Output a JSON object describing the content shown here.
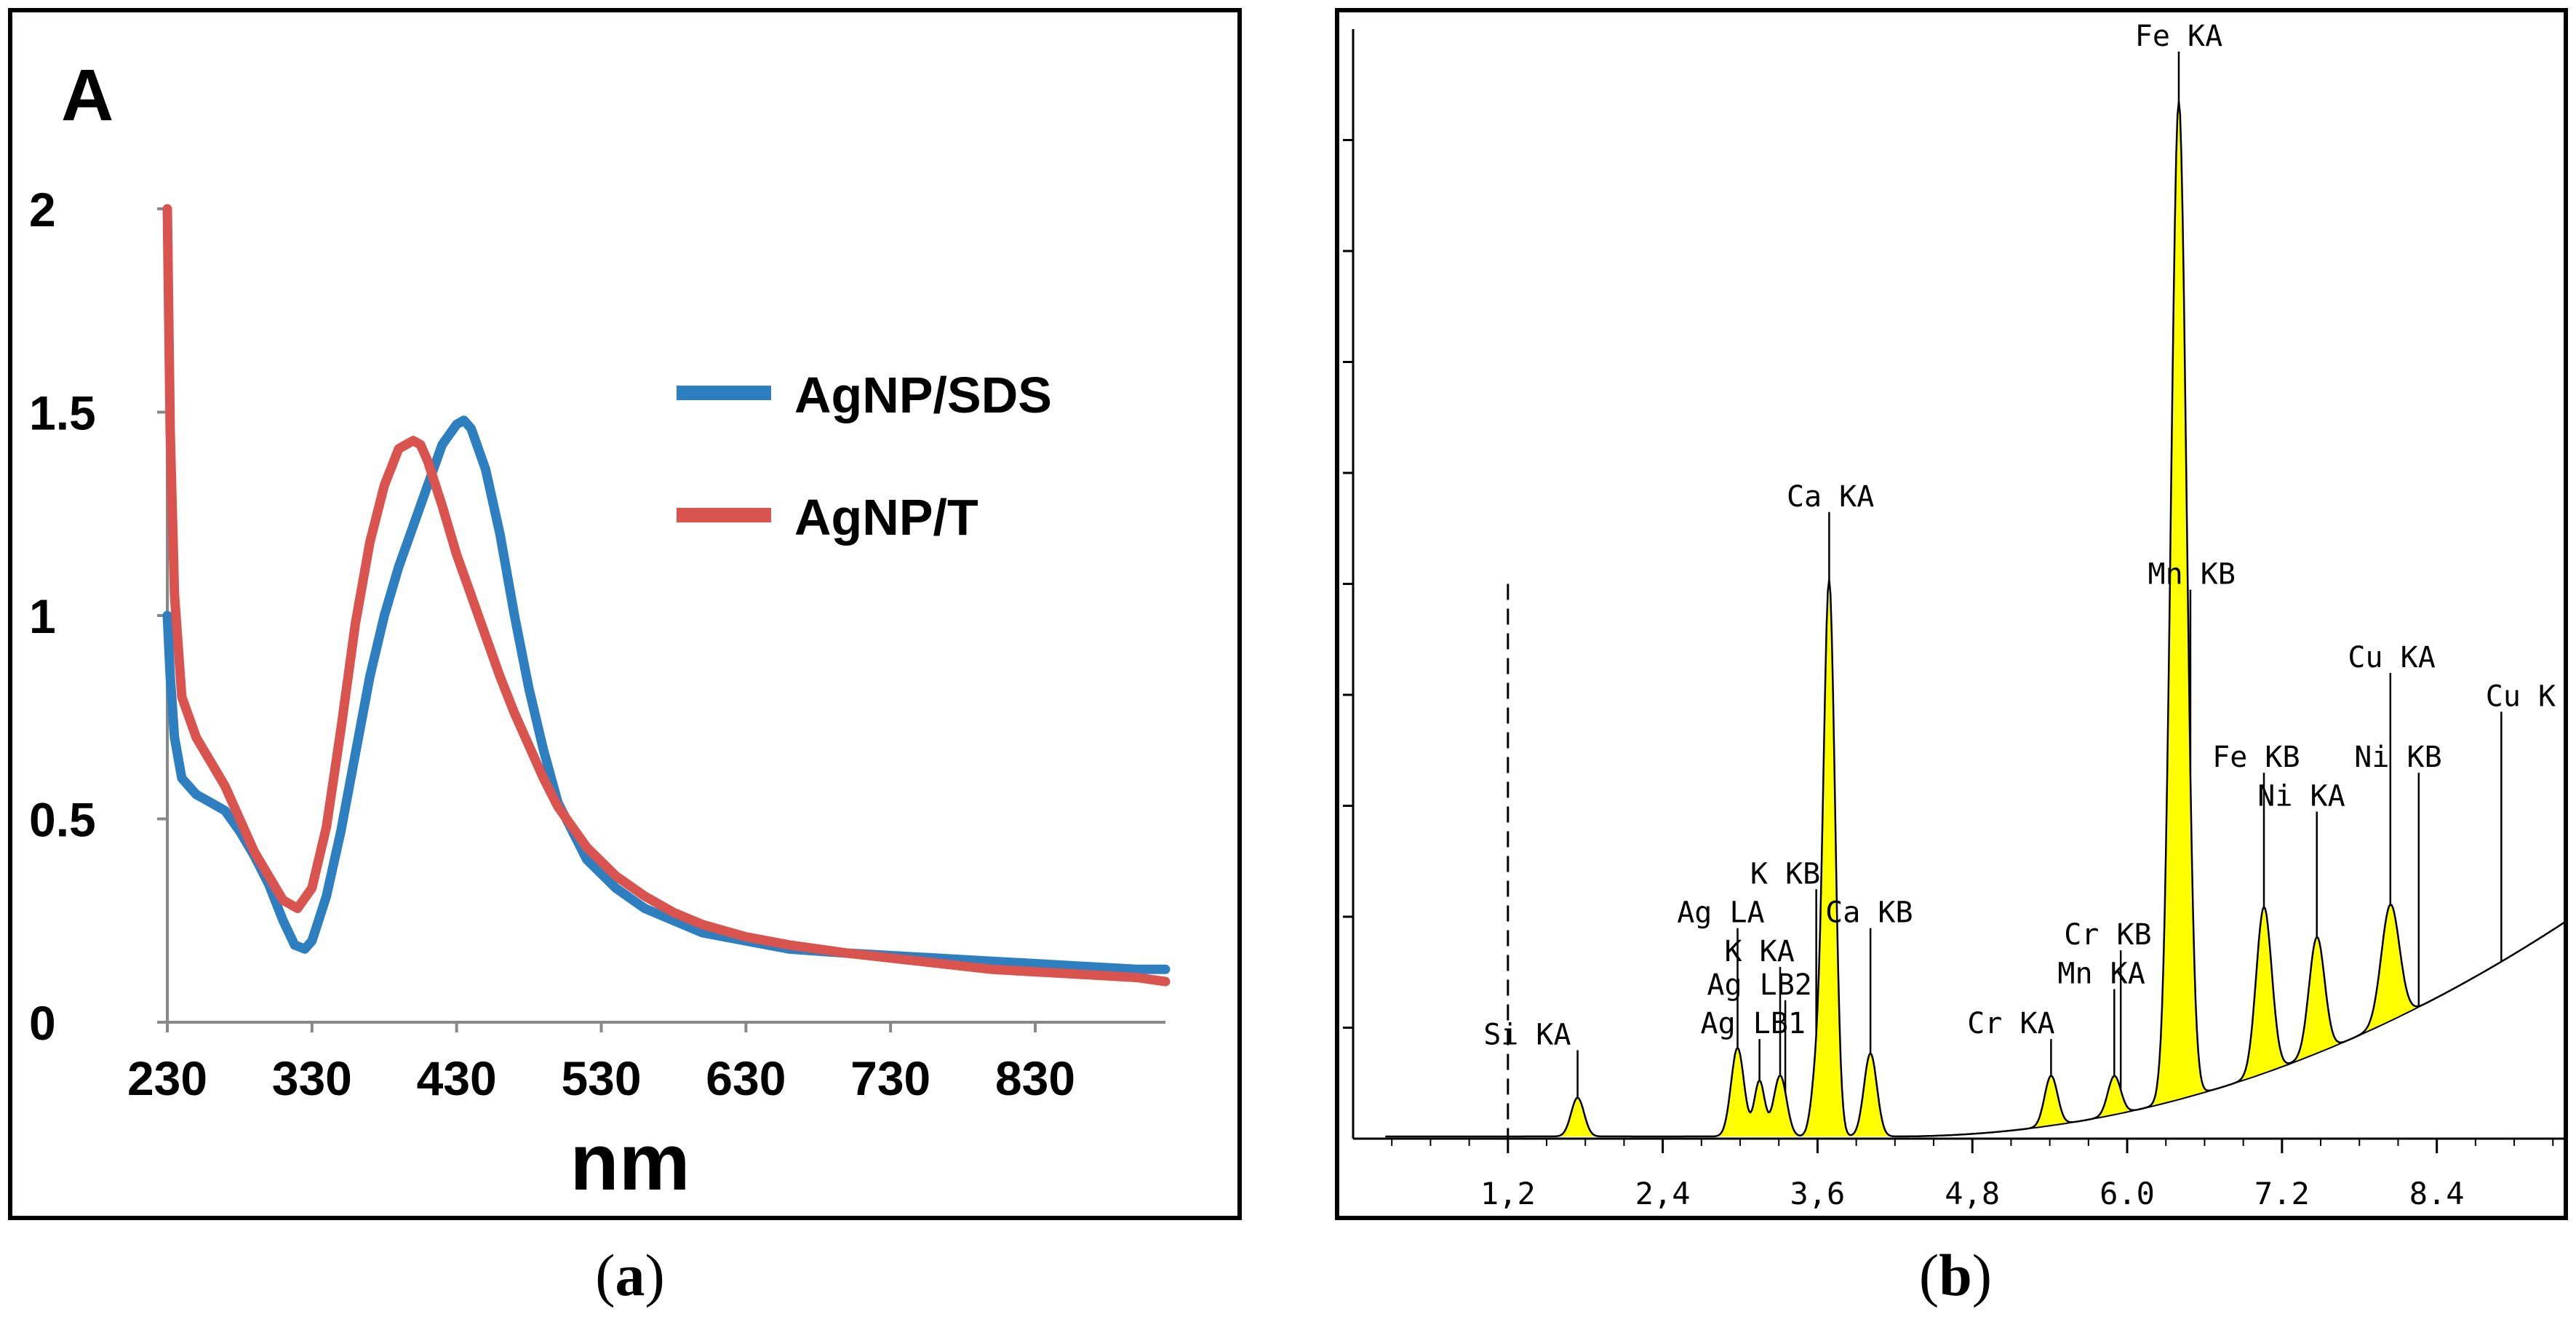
{
  "panels": {
    "a": {
      "caption": "(a)",
      "caption_letter": "a",
      "panel_label": "A"
    },
    "b": {
      "caption": "(b)",
      "caption_letter": "b"
    }
  },
  "chart_data": [
    {
      "type": "line",
      "title": "A",
      "xlabel": "nm",
      "ylabel": "",
      "xlim": [
        230,
        920
      ],
      "ylim": [
        0,
        2
      ],
      "x_ticks": [
        230,
        330,
        430,
        530,
        630,
        730,
        830
      ],
      "y_ticks": [
        0,
        0.5,
        1,
        1.5,
        2
      ],
      "x_tick_labels": [
        "230",
        "330",
        "430",
        "530",
        "630",
        "730",
        "830"
      ],
      "y_tick_labels": [
        "0",
        "0.5",
        "1",
        "1.5",
        "2"
      ],
      "grid": false,
      "legend": "right",
      "series": [
        {
          "name": "AgNP/SDS",
          "color": "#2e7fc0",
          "x": [
            230,
            232,
            235,
            240,
            250,
            260,
            270,
            280,
            290,
            300,
            310,
            318,
            325,
            330,
            340,
            350,
            360,
            370,
            380,
            390,
            400,
            410,
            420,
            430,
            435,
            440,
            450,
            460,
            470,
            480,
            490,
            500,
            520,
            540,
            560,
            580,
            600,
            630,
            660,
            700,
            750,
            800,
            850,
            900,
            920
          ],
          "y": [
            1.0,
            0.85,
            0.7,
            0.6,
            0.56,
            0.54,
            0.52,
            0.47,
            0.41,
            0.34,
            0.25,
            0.19,
            0.18,
            0.2,
            0.31,
            0.47,
            0.66,
            0.85,
            1.0,
            1.12,
            1.22,
            1.32,
            1.42,
            1.47,
            1.48,
            1.46,
            1.36,
            1.2,
            1.0,
            0.82,
            0.67,
            0.54,
            0.4,
            0.33,
            0.28,
            0.25,
            0.22,
            0.2,
            0.18,
            0.17,
            0.16,
            0.15,
            0.14,
            0.13,
            0.13
          ]
        },
        {
          "name": "AgNP/T",
          "color": "#d9534f",
          "x": [
            230,
            232,
            235,
            240,
            250,
            260,
            270,
            280,
            290,
            300,
            310,
            320,
            330,
            340,
            350,
            360,
            370,
            380,
            390,
            400,
            405,
            410,
            420,
            430,
            440,
            450,
            460,
            470,
            480,
            490,
            500,
            520,
            540,
            560,
            580,
            600,
            630,
            660,
            700,
            750,
            800,
            850,
            900,
            920
          ],
          "y": [
            2.0,
            1.45,
            1.05,
            0.8,
            0.7,
            0.64,
            0.58,
            0.5,
            0.42,
            0.36,
            0.3,
            0.28,
            0.33,
            0.48,
            0.72,
            0.98,
            1.18,
            1.32,
            1.41,
            1.43,
            1.42,
            1.38,
            1.27,
            1.15,
            1.05,
            0.95,
            0.85,
            0.76,
            0.68,
            0.6,
            0.53,
            0.43,
            0.36,
            0.31,
            0.27,
            0.24,
            0.21,
            0.19,
            0.17,
            0.15,
            0.13,
            0.12,
            0.11,
            0.1
          ]
        }
      ]
    },
    {
      "type": "area",
      "title": "",
      "xlabel": "",
      "ylabel": "",
      "xlim": [
        0,
        9.4
      ],
      "ylim": [
        0,
        10
      ],
      "x_tick_labels": [
        "1,2",
        "2,4",
        "3,6",
        "4,8",
        "6.0",
        "7.2",
        "8.4"
      ],
      "x_ticks": [
        1.2,
        2.4,
        3.6,
        4.8,
        6.0,
        7.2,
        8.4
      ],
      "marker_line": {
        "x": 1.2,
        "style": "dashed"
      },
      "fill_color": "#ffff00",
      "peak_labels": [
        {
          "text": "Si KA",
          "x": 1.74,
          "label_x": 1.35,
          "label_y": 0.85
        },
        {
          "text": "Ag LB1",
          "x": 3.15,
          "label_x": 3.1,
          "label_y": 0.95
        },
        {
          "text": "Ag LB2",
          "x": 3.35,
          "label_x": 3.15,
          "label_y": 1.3
        },
        {
          "text": "K KA",
          "x": 3.31,
          "label_x": 3.15,
          "label_y": 1.6
        },
        {
          "text": "Ag LA",
          "x": 2.98,
          "label_x": 2.85,
          "label_y": 1.95
        },
        {
          "text": "K KB",
          "x": 3.59,
          "label_x": 3.35,
          "label_y": 2.3
        },
        {
          "text": "Ca KA",
          "x": 3.69,
          "label_x": 3.7,
          "label_y": 5.7
        },
        {
          "text": "Ca KB",
          "x": 4.01,
          "label_x": 4.0,
          "label_y": 1.95
        },
        {
          "text": "Cr KA",
          "x": 5.41,
          "label_x": 5.1,
          "label_y": 0.95
        },
        {
          "text": "Mn KA",
          "x": 5.9,
          "label_x": 5.8,
          "label_y": 1.4
        },
        {
          "text": "Cr KB",
          "x": 5.95,
          "label_x": 5.85,
          "label_y": 1.75
        },
        {
          "text": "Fe KA",
          "x": 6.4,
          "label_x": 6.4,
          "label_y": 9.85
        },
        {
          "text": "Mn KB",
          "x": 6.49,
          "label_x": 6.5,
          "label_y": 5.0
        },
        {
          "text": "Fe KB",
          "x": 7.06,
          "label_x": 7.0,
          "label_y": 3.35
        },
        {
          "text": "Ni KA",
          "x": 7.47,
          "label_x": 7.35,
          "label_y": 3.0
        },
        {
          "text": "Cu KA",
          "x": 8.04,
          "label_x": 8.05,
          "label_y": 4.25
        },
        {
          "text": "Ni KB",
          "x": 8.26,
          "label_x": 8.1,
          "label_y": 3.35
        },
        {
          "text": "Cu K",
          "x": 8.9,
          "label_x": 9.05,
          "label_y": 3.9
        }
      ],
      "peaks": [
        {
          "center": 1.74,
          "height": 0.35,
          "width": 0.05
        },
        {
          "center": 2.98,
          "height": 0.8,
          "width": 0.05
        },
        {
          "center": 3.15,
          "height": 0.5,
          "width": 0.04
        },
        {
          "center": 3.31,
          "height": 0.55,
          "width": 0.05
        },
        {
          "center": 3.59,
          "height": 0.5,
          "width": 0.04
        },
        {
          "center": 3.69,
          "height": 5.0,
          "width": 0.045
        },
        {
          "center": 4.01,
          "height": 0.75,
          "width": 0.05
        },
        {
          "center": 5.41,
          "height": 0.45,
          "width": 0.05
        },
        {
          "center": 5.9,
          "height": 0.35,
          "width": 0.05
        },
        {
          "center": 6.4,
          "height": 9.0,
          "width": 0.06
        },
        {
          "center": 7.06,
          "height": 1.5,
          "width": 0.06
        },
        {
          "center": 7.47,
          "height": 1.05,
          "width": 0.06
        },
        {
          "center": 8.04,
          "height": 1.05,
          "width": 0.07
        }
      ],
      "background": {
        "baseline": 0.02,
        "start": 4.2,
        "coef": 0.066,
        "power": 2.05
      }
    }
  ]
}
